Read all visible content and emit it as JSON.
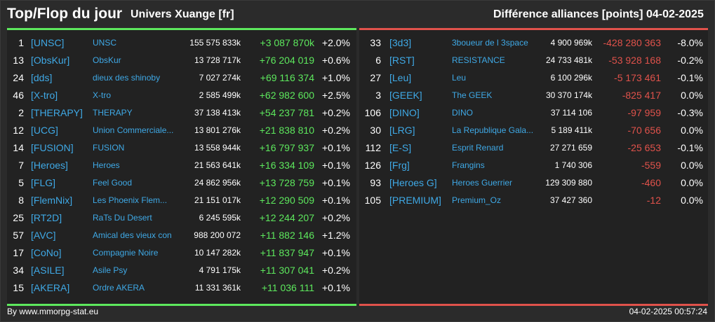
{
  "header": {
    "title": "Top/Flop du jour",
    "universe": "Univers Xuange [fr]",
    "subtitle": "Différence alliances [points]",
    "date": "04-02-2025"
  },
  "colors": {
    "top": "#5de85d",
    "flop": "#e0524b",
    "link": "#3fa9e6"
  },
  "top": [
    {
      "rank": "1",
      "tag": "[UNSC]",
      "name": "UNSC",
      "points": "155 575 833k",
      "diff": "+3 087 870k",
      "pct": "+2.0%"
    },
    {
      "rank": "13",
      "tag": "[ObsKur]",
      "name": "ObsKur",
      "points": "13 728 717k",
      "diff": "+76 204 019",
      "pct": "+0.6%"
    },
    {
      "rank": "24",
      "tag": "[dds]",
      "name": "dieux des shinoby",
      "points": "7 027 274k",
      "diff": "+69 116 374",
      "pct": "+1.0%"
    },
    {
      "rank": "46",
      "tag": "[X-tro]",
      "name": "X-tro",
      "points": "2 585 499k",
      "diff": "+62 982 600",
      "pct": "+2.5%"
    },
    {
      "rank": "2",
      "tag": "[THERAPY]",
      "name": "THERAPY",
      "points": "37 138 413k",
      "diff": "+54 237 781",
      "pct": "+0.2%"
    },
    {
      "rank": "12",
      "tag": "[UCG]",
      "name": "Union Commerciale...",
      "points": "13 801 276k",
      "diff": "+21 838 810",
      "pct": "+0.2%"
    },
    {
      "rank": "14",
      "tag": "[FUSION]",
      "name": "FUSION",
      "points": "13 558 944k",
      "diff": "+16 797 937",
      "pct": "+0.1%"
    },
    {
      "rank": "7",
      "tag": "[Heroes]",
      "name": "Heroes",
      "points": "21 563 641k",
      "diff": "+16 334 109",
      "pct": "+0.1%"
    },
    {
      "rank": "5",
      "tag": "[FLG]",
      "name": "Feel Good",
      "points": "24 862 956k",
      "diff": "+13 728 759",
      "pct": "+0.1%"
    },
    {
      "rank": "8",
      "tag": "[FlemNix]",
      "name": "Les Phoenix Flem...",
      "points": "21 151 017k",
      "diff": "+12 290 509",
      "pct": "+0.1%"
    },
    {
      "rank": "25",
      "tag": "[RT2D]",
      "name": "RaTs Du Desert",
      "points": "6 245 595k",
      "diff": "+12 244 207",
      "pct": "+0.2%"
    },
    {
      "rank": "57",
      "tag": "[AVC]",
      "name": "Amical des vieux con",
      "points": "988 200 072",
      "diff": "+11 882 146",
      "pct": "+1.2%"
    },
    {
      "rank": "17",
      "tag": "[CoNo]",
      "name": "Compagnie Noire",
      "points": "10 147 282k",
      "diff": "+11 837 947",
      "pct": "+0.1%"
    },
    {
      "rank": "34",
      "tag": "[ASILE]",
      "name": "Asile Psy",
      "points": "4 791 175k",
      "diff": "+11 307 041",
      "pct": "+0.2%"
    },
    {
      "rank": "15",
      "tag": "[AKERA]",
      "name": "Ordre AKERA",
      "points": "11 331 361k",
      "diff": "+11 036 111",
      "pct": "+0.1%"
    }
  ],
  "flop": [
    {
      "rank": "33",
      "tag": "[3d3]",
      "name": "3boueur de l 3space",
      "points": "4 900 969k",
      "diff": "-428 280 363",
      "pct": "-8.0%"
    },
    {
      "rank": "6",
      "tag": "[RST]",
      "name": "RESISTANCE",
      "points": "24 733 481k",
      "diff": "-53 928 168",
      "pct": "-0.2%"
    },
    {
      "rank": "27",
      "tag": "[Leu]",
      "name": "Leu",
      "points": "6 100 296k",
      "diff": "-5 173 461",
      "pct": "-0.1%"
    },
    {
      "rank": "3",
      "tag": "[GEEK]",
      "name": "The GEEK",
      "points": "30 370 174k",
      "diff": "-825 417",
      "pct": "0.0%"
    },
    {
      "rank": "106",
      "tag": "[DINO]",
      "name": "DINO",
      "points": "37 114 106",
      "diff": "-97 959",
      "pct": "-0.3%"
    },
    {
      "rank": "30",
      "tag": "[LRG]",
      "name": "La Republique Gala...",
      "points": "5 189 411k",
      "diff": "-70 656",
      "pct": "0.0%"
    },
    {
      "rank": "112",
      "tag": "[E-S]",
      "name": "Esprit Renard",
      "points": "27 271 659",
      "diff": "-25 653",
      "pct": "-0.1%"
    },
    {
      "rank": "126",
      "tag": "[Frg]",
      "name": "Frangins",
      "points": "1 740 306",
      "diff": "-559",
      "pct": "0.0%"
    },
    {
      "rank": "93",
      "tag": "[Heroes G]",
      "name": "Heroes Guerrier",
      "points": "129 309 880",
      "diff": "-460",
      "pct": "0.0%"
    },
    {
      "rank": "105",
      "tag": "[PREMIUM]",
      "name": "Premium_Oz",
      "points": "37 427 360",
      "diff": "-12",
      "pct": "0.0%"
    }
  ],
  "footer": {
    "source": "By www.mmorpg-stat.eu",
    "timestamp": "04-02-2025 00:57:24"
  }
}
